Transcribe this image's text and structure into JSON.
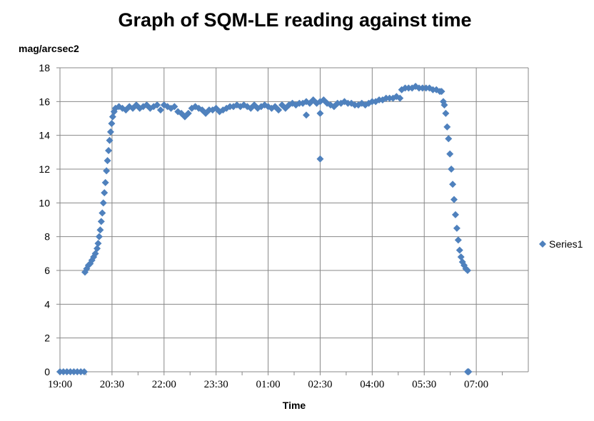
{
  "chart_data": {
    "type": "scatter",
    "title": "Graph of SQM-LE reading against time",
    "xlabel": "Time",
    "ylabel": "mag/arcsec2",
    "ylim": [
      0,
      18
    ],
    "yticks": [
      0,
      2,
      4,
      6,
      8,
      10,
      12,
      14,
      16,
      18
    ],
    "xlim": [
      "19:00",
      "23:30 + 9h"
    ],
    "xticks": [
      "19:00",
      "20:30",
      "22:00",
      "23:30",
      "01:00",
      "02:30",
      "04:00",
      "05:30",
      "07:00"
    ],
    "grid": true,
    "legend": "right",
    "marker": "diamond",
    "series": [
      {
        "name": "Series1",
        "color": "#4F81BD",
        "x_unit": "hours since 19:00",
        "points": [
          [
            0.0,
            0
          ],
          [
            0.1,
            0
          ],
          [
            0.2,
            0
          ],
          [
            0.3,
            0
          ],
          [
            0.4,
            0
          ],
          [
            0.5,
            0
          ],
          [
            0.6,
            0
          ],
          [
            0.7,
            0
          ],
          [
            0.72,
            5.9
          ],
          [
            0.77,
            6.1
          ],
          [
            0.82,
            6.3
          ],
          [
            0.87,
            6.4
          ],
          [
            0.92,
            6.6
          ],
          [
            0.97,
            6.8
          ],
          [
            1.02,
            7.0
          ],
          [
            1.07,
            7.3
          ],
          [
            1.1,
            7.6
          ],
          [
            1.13,
            8.0
          ],
          [
            1.16,
            8.4
          ],
          [
            1.19,
            8.9
          ],
          [
            1.22,
            9.4
          ],
          [
            1.25,
            10.0
          ],
          [
            1.28,
            10.6
          ],
          [
            1.31,
            11.2
          ],
          [
            1.34,
            11.9
          ],
          [
            1.37,
            12.5
          ],
          [
            1.4,
            13.1
          ],
          [
            1.43,
            13.7
          ],
          [
            1.46,
            14.2
          ],
          [
            1.49,
            14.7
          ],
          [
            1.52,
            15.1
          ],
          [
            1.56,
            15.4
          ],
          [
            1.6,
            15.6
          ],
          [
            1.7,
            15.7
          ],
          [
            1.8,
            15.6
          ],
          [
            1.9,
            15.5
          ],
          [
            2.0,
            15.7
          ],
          [
            2.1,
            15.6
          ],
          [
            2.2,
            15.8
          ],
          [
            2.3,
            15.6
          ],
          [
            2.4,
            15.7
          ],
          [
            2.5,
            15.8
          ],
          [
            2.6,
            15.6
          ],
          [
            2.7,
            15.7
          ],
          [
            2.8,
            15.8
          ],
          [
            2.9,
            15.5
          ],
          [
            3.0,
            15.8
          ],
          [
            3.1,
            15.7
          ],
          [
            3.2,
            15.6
          ],
          [
            3.3,
            15.7
          ],
          [
            3.4,
            15.4
          ],
          [
            3.5,
            15.3
          ],
          [
            3.6,
            15.1
          ],
          [
            3.7,
            15.3
          ],
          [
            3.8,
            15.6
          ],
          [
            3.9,
            15.7
          ],
          [
            4.0,
            15.6
          ],
          [
            4.1,
            15.5
          ],
          [
            4.2,
            15.3
          ],
          [
            4.3,
            15.5
          ],
          [
            4.4,
            15.5
          ],
          [
            4.5,
            15.6
          ],
          [
            4.6,
            15.4
          ],
          [
            4.7,
            15.5
          ],
          [
            4.8,
            15.6
          ],
          [
            4.9,
            15.7
          ],
          [
            5.0,
            15.7
          ],
          [
            5.1,
            15.8
          ],
          [
            5.2,
            15.7
          ],
          [
            5.3,
            15.8
          ],
          [
            5.4,
            15.7
          ],
          [
            5.5,
            15.6
          ],
          [
            5.6,
            15.8
          ],
          [
            5.7,
            15.6
          ],
          [
            5.8,
            15.7
          ],
          [
            5.9,
            15.8
          ],
          [
            6.0,
            15.7
          ],
          [
            6.1,
            15.6
          ],
          [
            6.2,
            15.7
          ],
          [
            6.3,
            15.5
          ],
          [
            6.4,
            15.8
          ],
          [
            6.5,
            15.6
          ],
          [
            6.6,
            15.8
          ],
          [
            6.7,
            15.9
          ],
          [
            6.8,
            15.8
          ],
          [
            6.9,
            15.9
          ],
          [
            7.0,
            15.9
          ],
          [
            7.1,
            16.0
          ],
          [
            7.2,
            15.9
          ],
          [
            7.3,
            16.1
          ],
          [
            7.4,
            15.9
          ],
          [
            7.5,
            16.0
          ],
          [
            7.6,
            16.1
          ],
          [
            7.7,
            15.9
          ],
          [
            7.8,
            15.8
          ],
          [
            7.9,
            15.7
          ],
          [
            8.0,
            15.9
          ],
          [
            8.1,
            15.9
          ],
          [
            8.2,
            16.0
          ],
          [
            8.3,
            15.9
          ],
          [
            8.4,
            15.9
          ],
          [
            8.5,
            15.8
          ],
          [
            8.6,
            15.8
          ],
          [
            8.7,
            15.9
          ],
          [
            8.8,
            15.8
          ],
          [
            8.9,
            15.9
          ],
          [
            9.0,
            16.0
          ],
          [
            9.1,
            16.0
          ],
          [
            9.2,
            16.1
          ],
          [
            9.3,
            16.1
          ],
          [
            9.4,
            16.2
          ],
          [
            9.5,
            16.2
          ],
          [
            9.6,
            16.2
          ],
          [
            9.7,
            16.3
          ],
          [
            9.8,
            16.2
          ],
          [
            9.85,
            16.7
          ],
          [
            9.95,
            16.8
          ],
          [
            10.05,
            16.8
          ],
          [
            10.15,
            16.8
          ],
          [
            10.25,
            16.9
          ],
          [
            10.35,
            16.8
          ],
          [
            10.45,
            16.8
          ],
          [
            10.55,
            16.8
          ],
          [
            10.65,
            16.8
          ],
          [
            10.75,
            16.7
          ],
          [
            10.85,
            16.7
          ],
          [
            10.95,
            16.6
          ],
          [
            11.0,
            16.6
          ],
          [
            11.05,
            16.0
          ],
          [
            11.08,
            15.8
          ],
          [
            11.12,
            15.3
          ],
          [
            11.16,
            14.5
          ],
          [
            11.2,
            13.8
          ],
          [
            11.24,
            12.9
          ],
          [
            11.28,
            12.0
          ],
          [
            11.32,
            11.1
          ],
          [
            11.36,
            10.2
          ],
          [
            11.4,
            9.3
          ],
          [
            11.44,
            8.5
          ],
          [
            11.48,
            7.8
          ],
          [
            11.52,
            7.2
          ],
          [
            11.56,
            6.8
          ],
          [
            11.6,
            6.5
          ],
          [
            11.65,
            6.3
          ],
          [
            11.7,
            6.1
          ],
          [
            11.75,
            6.0
          ],
          [
            11.75,
            0
          ],
          [
            11.78,
            0
          ],
          [
            7.1,
            15.2
          ],
          [
            7.5,
            15.3
          ],
          [
            7.5,
            12.6
          ]
        ]
      }
    ]
  }
}
